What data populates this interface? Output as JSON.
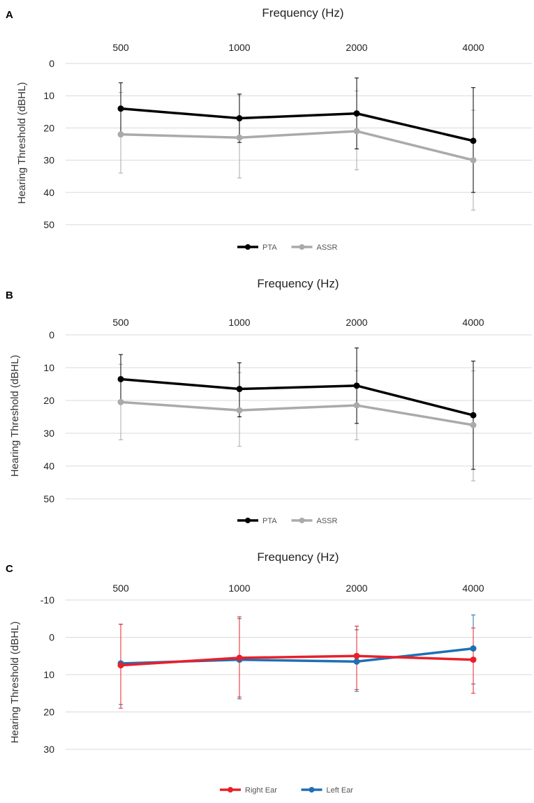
{
  "chart_data": [
    {
      "panel": "A",
      "type": "line",
      "title": "Frequency (Hz)",
      "ylabel": "Hearing Threshold (dBHL)",
      "categories": [
        "500",
        "1000",
        "2000",
        "4000"
      ],
      "y_axis_inverted": true,
      "ylim": [
        0,
        50
      ],
      "yticks": [
        0,
        10,
        20,
        30,
        40,
        50
      ],
      "grid": true,
      "legend_position": "bottom",
      "series": [
        {
          "name": "PTA",
          "color": "#000000",
          "values": [
            14,
            17,
            15.5,
            24
          ],
          "error_low": [
            6,
            9.5,
            4.5,
            7.5
          ],
          "error_high": [
            22,
            24.5,
            26.5,
            40
          ]
        },
        {
          "name": "ASSR",
          "color": "#aaaaaa",
          "values": [
            22,
            23,
            21,
            30
          ],
          "error_low": [
            9,
            10,
            8.5,
            14.5
          ],
          "error_high": [
            34,
            35.5,
            33,
            45.5
          ]
        }
      ]
    },
    {
      "panel": "B",
      "type": "line",
      "title": "Frequency (Hz)",
      "ylabel": "Hearing Threshold (dBHL)",
      "categories": [
        "500",
        "1000",
        "2000",
        "4000"
      ],
      "y_axis_inverted": true,
      "ylim": [
        0,
        50
      ],
      "yticks": [
        0,
        10,
        20,
        30,
        40,
        50
      ],
      "grid": true,
      "legend_position": "bottom",
      "series": [
        {
          "name": "PTA",
          "color": "#000000",
          "values": [
            13.5,
            16.5,
            15.5,
            24.5
          ],
          "error_low": [
            6,
            8.5,
            4,
            8
          ],
          "error_high": [
            21,
            25,
            27,
            41
          ]
        },
        {
          "name": "ASSR",
          "color": "#aaaaaa",
          "values": [
            20.5,
            23,
            21.5,
            27.5
          ],
          "error_low": [
            9,
            11.5,
            11,
            11
          ],
          "error_high": [
            32,
            34,
            32,
            44.5
          ]
        }
      ]
    },
    {
      "panel": "C",
      "type": "line",
      "title": "Frequency (Hz)",
      "ylabel": "Hearing Threshold (dBHL)",
      "categories": [
        "500",
        "1000",
        "2000",
        "4000"
      ],
      "y_axis_inverted": true,
      "ylim": [
        -10,
        30
      ],
      "yticks": [
        -10,
        0,
        10,
        20,
        30
      ],
      "grid": true,
      "legend_position": "bottom",
      "series": [
        {
          "name": "Right Ear",
          "color": "#e8202a",
          "values": [
            7.5,
            5.5,
            5,
            6
          ],
          "error_low": [
            -3.5,
            -5.5,
            -3,
            -2.5
          ],
          "error_high": [
            19,
            16,
            14,
            15
          ]
        },
        {
          "name": "Left Ear",
          "color": "#1f6fb4",
          "values": [
            7,
            6,
            6.5,
            3
          ],
          "error_low": [
            -3.5,
            -5,
            -2,
            -6
          ],
          "error_high": [
            18,
            16.5,
            14.5,
            12.5
          ]
        }
      ]
    }
  ]
}
